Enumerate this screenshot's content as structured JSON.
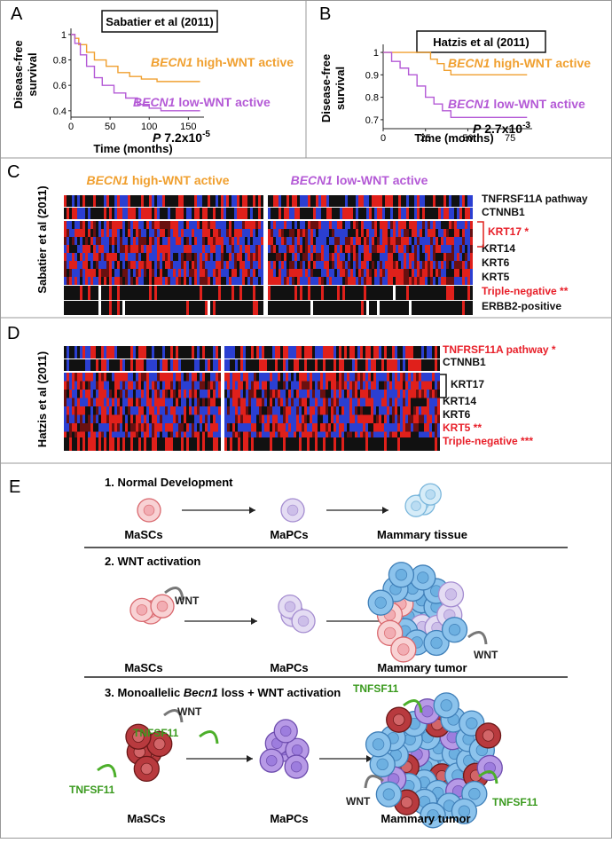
{
  "survival": [
    {
      "label": "A",
      "title": "Sabatier et al (2011)",
      "ylabel": [
        "Disease-free",
        "survival"
      ],
      "xlabel": "Time (months)",
      "xlim": [
        0,
        170
      ],
      "xticks": [
        0,
        50,
        100,
        150
      ],
      "ylim": [
        0.35,
        1.02
      ],
      "yticks": [
        0.4,
        0.6,
        0.8,
        1
      ],
      "series": [
        {
          "gene": "BECN1",
          "name": "high-WNT active",
          "color": "#f0a030",
          "x": [
            0,
            5,
            10,
            20,
            30,
            45,
            60,
            75,
            90,
            110,
            165
          ],
          "values": [
            1,
            0.97,
            0.92,
            0.86,
            0.8,
            0.75,
            0.7,
            0.67,
            0.65,
            0.63,
            0.63
          ]
        },
        {
          "gene": "BECN1",
          "name": "low-WNT active",
          "color": "#b45ad6",
          "x": [
            0,
            5,
            12,
            20,
            30,
            40,
            55,
            70,
            85,
            100,
            115,
            165
          ],
          "values": [
            1,
            0.93,
            0.84,
            0.75,
            0.66,
            0.6,
            0.54,
            0.5,
            0.45,
            0.42,
            0.4,
            0.4
          ]
        }
      ],
      "pvalue": {
        "symbol": "P",
        "mantissa": "7.2x10",
        "exponent": "-5"
      }
    },
    {
      "label": "B",
      "title": "Hatzis et al (2011)",
      "ylabel": [
        "Disease-free",
        "survival"
      ],
      "xlabel": "Time (months)",
      "xlim": [
        0,
        88
      ],
      "xticks": [
        0,
        25,
        50,
        75
      ],
      "ylim": [
        0.66,
        1.02
      ],
      "yticks": [
        0.7,
        0.8,
        0.9,
        1
      ],
      "series": [
        {
          "gene": "BECN1",
          "name": "high-WNT active",
          "color": "#f0a030",
          "x": [
            0,
            28,
            32,
            36,
            40,
            85
          ],
          "values": [
            1,
            0.97,
            0.95,
            0.92,
            0.9,
            0.9
          ]
        },
        {
          "gene": "BECN1",
          "name": "low-WNT active",
          "color": "#b45ad6",
          "x": [
            0,
            5,
            10,
            15,
            20,
            25,
            30,
            35,
            40,
            85
          ],
          "values": [
            1,
            0.96,
            0.93,
            0.9,
            0.85,
            0.8,
            0.77,
            0.74,
            0.71,
            0.71
          ]
        }
      ],
      "pvalue": {
        "symbol": "P",
        "mantissa": "2.7x10",
        "exponent": "-3"
      }
    }
  ],
  "heatmapC": {
    "label": "C",
    "ylabel": "Sabatier et al (2011)",
    "groups": [
      {
        "gene": "BECN1",
        "name": "high-WNT active",
        "color": "#f0a030"
      },
      {
        "gene": "BECN1",
        "name": "low-WNT active",
        "color": "#b45ad6"
      }
    ],
    "rows": [
      {
        "label": "TNFRSF11A pathway",
        "color": "#111111"
      },
      {
        "label": "CTNNB1",
        "color": "#111111"
      },
      {
        "label": "KRT17 *",
        "color": "#e8202a"
      },
      {
        "label": "KRT14",
        "color": "#111111"
      },
      {
        "label": "KRT6",
        "color": "#111111"
      },
      {
        "label": "KRT5",
        "color": "#111111"
      },
      {
        "label": "Triple-negative **",
        "color": "#e8202a"
      },
      {
        "label": "ERBB2-positive",
        "color": "#111111"
      }
    ]
  },
  "heatmapD": {
    "label": "D",
    "ylabel": "Hatzis et al (2011)",
    "rows": [
      {
        "label": "TNFRSF11A pathway *",
        "color": "#e8202a"
      },
      {
        "label": "CTNNB1",
        "color": "#111111"
      },
      {
        "label": "KRT17",
        "color": "#111111"
      },
      {
        "label": "KRT14",
        "color": "#111111"
      },
      {
        "label": "KRT6",
        "color": "#111111"
      },
      {
        "label": "KRT5 **",
        "color": "#e8202a"
      },
      {
        "label": "Triple-negative ***",
        "color": "#e8202a"
      }
    ]
  },
  "model": {
    "label": "E",
    "sections": [
      {
        "title": "1. Normal Development",
        "cells": [
          "MaSCs",
          "MaPCs",
          "Mammary tissue"
        ]
      },
      {
        "title": "2. WNT activation",
        "cells": [
          "MaSCs",
          "MaPCs",
          "Mammary tumor"
        ],
        "signal": "WNT"
      },
      {
        "title_parts": [
          "3. Monoallelic ",
          "Becn1",
          " loss + WNT activation"
        ],
        "cells": [
          "MaSCs",
          "MaPCs",
          "Mammary tumor"
        ],
        "signal": "WNT",
        "ligand": "TNFSF11"
      }
    ]
  }
}
